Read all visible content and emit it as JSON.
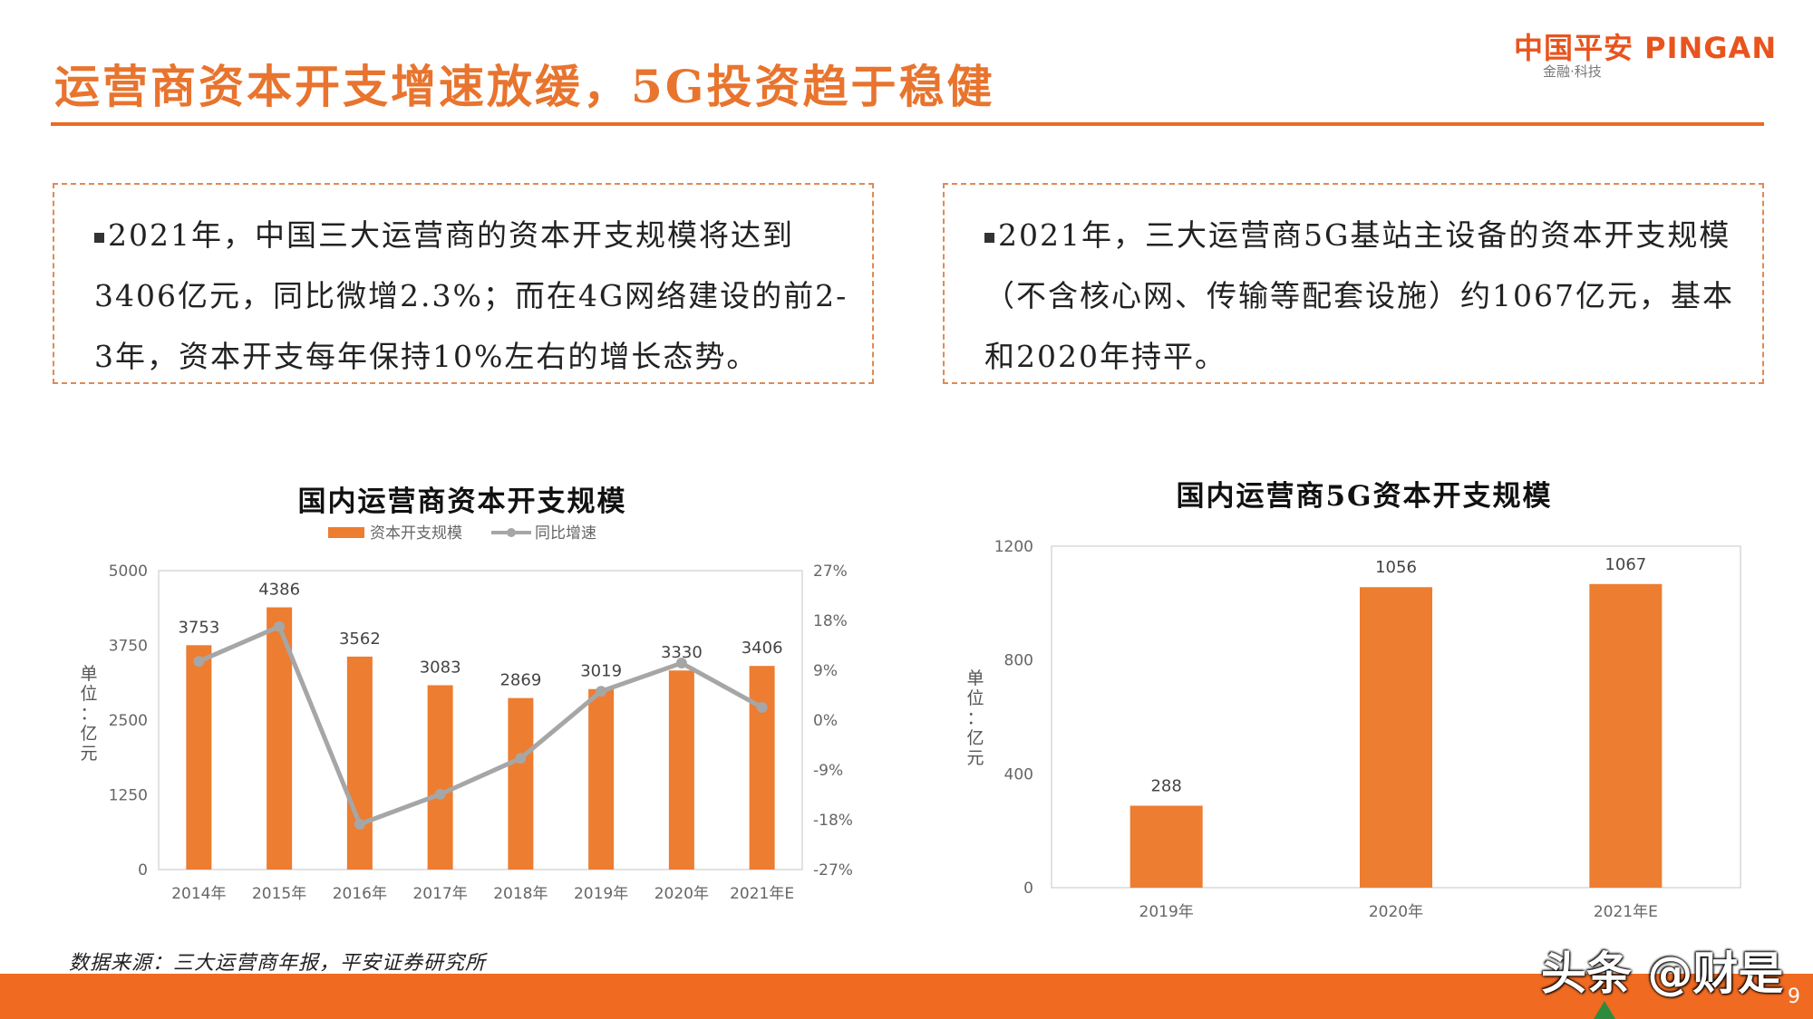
{
  "header": {
    "title": "运营商资本开支增速放缓，5G投资趋于稳健",
    "logo_main": "中国平安 PINGAN",
    "logo_sub": "金融·科技"
  },
  "boxes": [
    {
      "text": "2021年，中国三大运营商的资本开支规模将达到3406亿元，同比微增2.3%；而在4G网络建设的前2-3年，资本开支每年保持10%左右的增长态势。"
    },
    {
      "text": "2021年，三大运营商5G基站主设备的资本开支规模（不含核心网、传输等配套设施）约1067亿元，基本和2020年持平。"
    }
  ],
  "chart_data": [
    {
      "type": "bar",
      "title": "国内运营商资本开支规模",
      "categories": [
        "2014年",
        "2015年",
        "2016年",
        "2017年",
        "2018年",
        "2019年",
        "2020年",
        "2021年E"
      ],
      "series": [
        {
          "name": "资本开支规模",
          "type": "bar",
          "axis": "left",
          "values": [
            3753,
            4386,
            3562,
            3083,
            2869,
            3019,
            3330,
            3406
          ]
        },
        {
          "name": "同比增速",
          "type": "line",
          "axis": "right",
          "values": [
            10.6,
            16.9,
            -18.8,
            -13.4,
            -6.9,
            5.2,
            10.3,
            2.3
          ]
        }
      ],
      "ylabel": "单位：亿元",
      "ylim": [
        0,
        5000
      ],
      "yticks": [
        "0",
        "1250",
        "2500",
        "3750",
        "5000"
      ],
      "y2lim": [
        -27,
        27
      ],
      "y2ticks": [
        "-27%",
        "-18%",
        "-9%",
        "0%",
        "9%",
        "18%",
        "27%"
      ],
      "legend_position": "top",
      "grid": false,
      "colors": {
        "bar": "#ed7d31",
        "line": "#a6a6a6"
      }
    },
    {
      "type": "bar",
      "title": "国内运营商5G资本开支规模",
      "categories": [
        "2019年",
        "2020年",
        "2021年E"
      ],
      "values": [
        288,
        1056,
        1067
      ],
      "ylabel": "单位：亿元",
      "ylim": [
        0,
        1200
      ],
      "yticks": [
        "0",
        "400",
        "800",
        "1200"
      ],
      "grid": false,
      "colors": {
        "bar": "#ed7d31"
      }
    }
  ],
  "footer": {
    "source": "数据来源：三大运营商年报，平安证券研究所",
    "watermark": "头条 @财是",
    "page": "9"
  }
}
